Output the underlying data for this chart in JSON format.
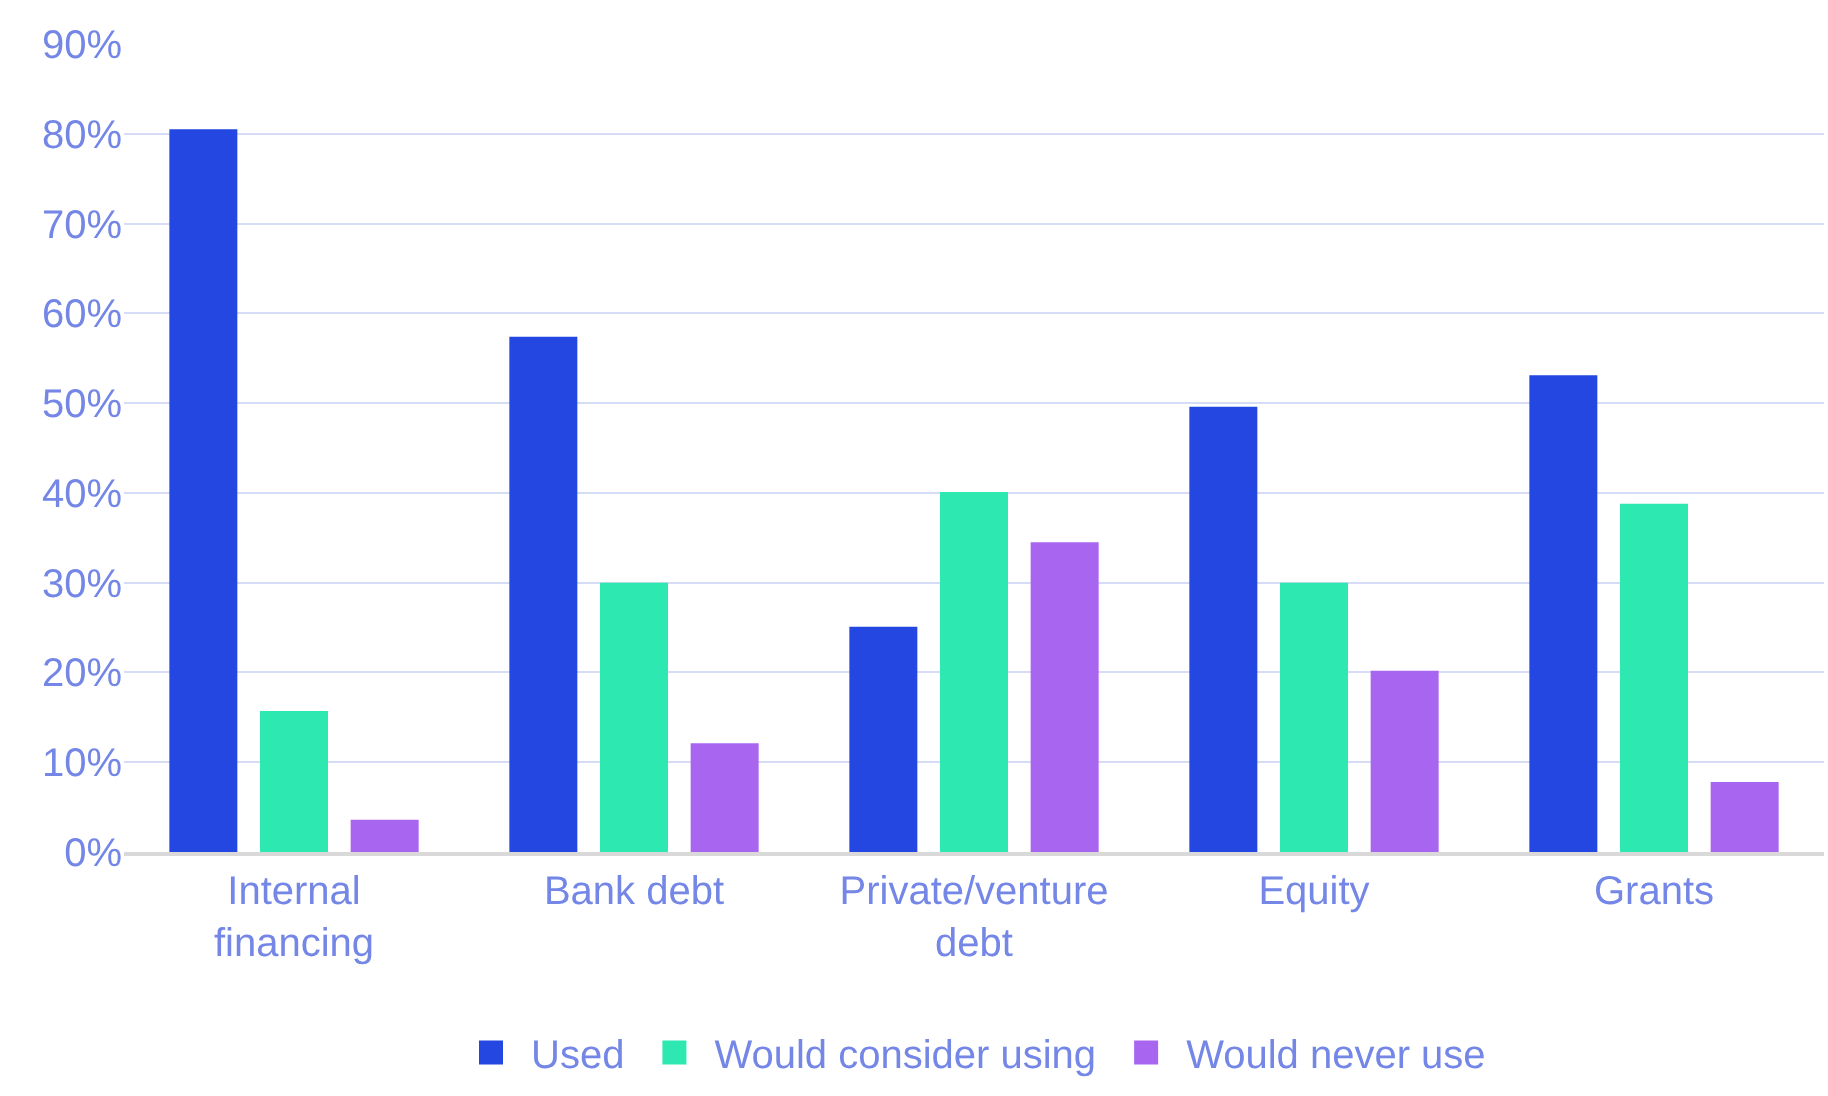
{
  "chart_data": {
    "type": "bar",
    "categories": [
      "Internal financing",
      "Bank debt",
      "Private/venture debt",
      "Equity",
      "Grants"
    ],
    "series": [
      {
        "name": "Used",
        "color": "#2347e0",
        "values": [
          80.5,
          57.4,
          25.1,
          49.6,
          53.1
        ]
      },
      {
        "name": "Would consider using",
        "color": "#2de8b0",
        "values": [
          15.7,
          30.0,
          40.1,
          30.0,
          38.8
        ]
      },
      {
        "name": "Would never use",
        "color": "#a866f0",
        "values": [
          3.6,
          12.1,
          34.5,
          20.2,
          7.8
        ]
      }
    ],
    "ylim": [
      0,
      90
    ],
    "yticks": [
      {
        "value": 0,
        "label": "0%"
      },
      {
        "value": 10,
        "label": "10%"
      },
      {
        "value": 20,
        "label": "20%"
      },
      {
        "value": 30,
        "label": "30%"
      },
      {
        "value": 40,
        "label": "40%"
      },
      {
        "value": 50,
        "label": "50%"
      },
      {
        "value": 60,
        "label": "60%"
      },
      {
        "value": 70,
        "label": "70%"
      },
      {
        "value": 80,
        "label": "80%"
      },
      {
        "value": 90,
        "label": "90%"
      }
    ],
    "grid": "y",
    "legend": "bottom"
  }
}
